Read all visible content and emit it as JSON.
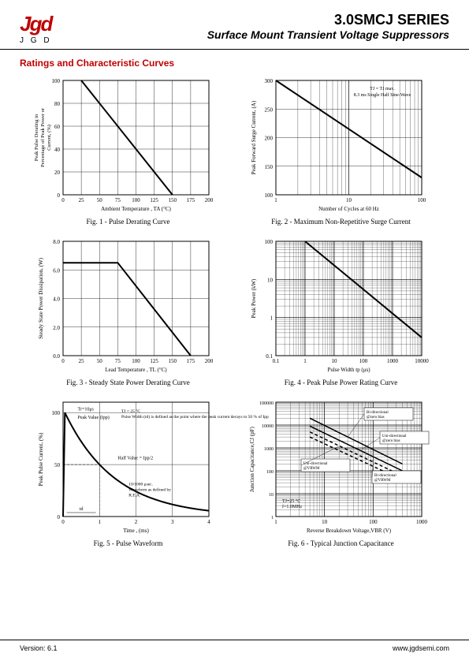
{
  "header": {
    "logo_letters": "Jgd",
    "logo_sub": "J G D",
    "series": "3.0SMCJ SERIES",
    "subtitle": "Surface Mount Transient Voltage Suppressors"
  },
  "section_title": "Ratings and Characteristic Curves",
  "footer": {
    "version": "Version: 6.1",
    "url": "www.jgdsemi.com"
  },
  "fig1": {
    "caption": "Fig. 1 - Pulse Derating Curve",
    "xlabel": "Ambient Temperature , TA  (°C)",
    "ylabel": "Peak Pulse Derating in Percentage of Peak Power or Current, (%)",
    "xlim": [
      0,
      200
    ],
    "xtick_step": 25,
    "ylim": [
      0,
      100
    ],
    "ytick_step": 20,
    "line": [
      [
        25,
        100
      ],
      [
        150,
        0
      ]
    ],
    "line_color": "#000000",
    "line_width": 2,
    "grid_color": "#000000"
  },
  "fig2": {
    "caption": "Fig. 2 - Maximum Non-Repetitive Surge Current",
    "xlabel": "Number of Cycles at 60 Hz",
    "ylabel": "Peak Forward Surge Current, (A)",
    "xscale": "log",
    "xlim": [
      1,
      100
    ],
    "xticks": [
      1,
      10,
      100
    ],
    "ylim": [
      100,
      300
    ],
    "ytick_step": 50,
    "annotation": "TJ = TJ max.\n8.3 ms Single Half Sine-Wave",
    "line": [
      [
        1,
        300
      ],
      [
        100,
        130
      ]
    ],
    "line_color": "#000000",
    "line_width": 2
  },
  "fig3": {
    "caption": "Fig. 3 - Steady State Power Derating Curve",
    "xlabel": "Lead Temperature , TL  (°C)",
    "ylabel": "Steady State Power Dissipation, (W)",
    "xlim": [
      0,
      200
    ],
    "xtick_step": 25,
    "ylim": [
      0,
      8
    ],
    "ytick_step": 2,
    "line": [
      [
        0,
        6.5
      ],
      [
        75,
        6.5
      ],
      [
        175,
        0
      ]
    ],
    "line_color": "#000000",
    "line_width": 2
  },
  "fig4": {
    "caption": "Fig. 4 - Peak Pulse Power Rating Curve",
    "xlabel": "Pulse Width tp (μs)",
    "ylabel": "Peak Power (kW)",
    "xscale": "log",
    "xlim": [
      0.1,
      10000
    ],
    "xticks": [
      0.1,
      1,
      10,
      100,
      1000,
      10000
    ],
    "yscale": "log",
    "ylim": [
      0.1,
      100
    ],
    "yticks": [
      0.1,
      1,
      10,
      100
    ],
    "line": [
      [
        1,
        100
      ],
      [
        10000,
        0.3
      ]
    ],
    "line_color": "#000000",
    "line_width": 2
  },
  "fig5": {
    "caption": "Fig. 5 - Pulse Waveform",
    "xlabel": "Time , (ms)",
    "ylabel": "Peak Pulse Current, (%)",
    "xlim": [
      0,
      4
    ],
    "xtick_step": 1,
    "ylim": [
      0,
      110
    ],
    "yticks": [
      0,
      50,
      100
    ],
    "annotations": {
      "tr": "Tr=10μs",
      "peak": "Peak Value (Ipp)",
      "tj": "TJ = 25 °C\nPulse Width (td) is defined as the point where the peak current decays to 50 % of Ipp",
      "half": "Half Value = Ipp/2",
      "rea": "10/1000 μsec. Waveform as defined by R.E.A.",
      "td": "td"
    },
    "curve_color": "#000000",
    "curve_width": 2
  },
  "fig6": {
    "caption": "Fig. 6 - Typical Junction Capacitance",
    "xlabel": "Reverse Breakdown Voltage,VBR (V)",
    "ylabel": "Junction Capacitance,CJ (pF)",
    "xscale": "log",
    "xlim": [
      1,
      1000
    ],
    "xticks": [
      1,
      10,
      100,
      1000
    ],
    "yscale": "log",
    "ylim": [
      1,
      100000
    ],
    "yticks": [
      1,
      10,
      100,
      1000,
      10000,
      100000
    ],
    "series": [
      {
        "label": "Bi-directional @zero bias",
        "style": "solid",
        "pts": [
          [
            5,
            20000
          ],
          [
            400,
            200
          ]
        ]
      },
      {
        "label": "Uni-directional @zero bias",
        "style": "solid",
        "pts": [
          [
            5,
            9000
          ],
          [
            400,
            100
          ]
        ]
      },
      {
        "label": "Uni-directional @VRWM",
        "style": "dash",
        "pts": [
          [
            5,
            5000
          ],
          [
            400,
            60
          ]
        ]
      },
      {
        "label": "Bi-directional @VRWM",
        "style": "dash",
        "pts": [
          [
            5,
            3000
          ],
          [
            400,
            40
          ]
        ]
      }
    ],
    "note": "TJ=25 °C\nf=1.0MHz",
    "line_color": "#000000"
  }
}
